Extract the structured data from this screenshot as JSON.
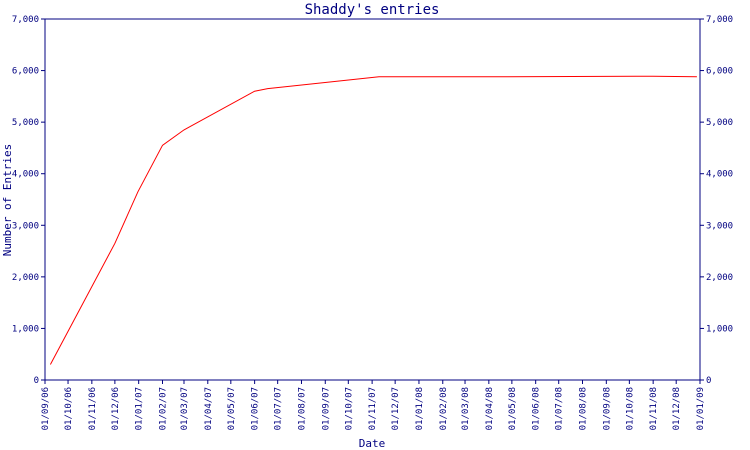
{
  "chart_data": {
    "type": "line",
    "title": "Shaddy's entries",
    "xlabel": "Date",
    "ylabel": "Number of Entries",
    "ylim": [
      0,
      7000
    ],
    "y_ticks": [
      0,
      1000,
      2000,
      3000,
      4000,
      5000,
      6000,
      7000
    ],
    "y_tick_labels": [
      "0",
      "1,000",
      "2,000",
      "3,000",
      "4,000",
      "5,000",
      "6,000",
      "7,000"
    ],
    "x_tick_labels": [
      "01/09/06",
      "01/10/06",
      "01/11/06",
      "01/12/06",
      "01/01/07",
      "01/02/07",
      "01/03/07",
      "01/04/07",
      "01/05/07",
      "01/06/07",
      "01/07/07",
      "01/08/07",
      "01/09/07",
      "01/10/07",
      "01/11/07",
      "01/12/07",
      "01/01/08",
      "01/02/08",
      "01/03/08",
      "01/04/08",
      "01/05/08",
      "01/06/08",
      "01/07/08",
      "01/08/08",
      "01/09/08",
      "01/10/08",
      "01/11/08",
      "01/12/08",
      "01/01/09"
    ],
    "grid": false,
    "line_color": "#ff0000",
    "axis_color": "#000080",
    "text_color": "#000080",
    "series": [
      {
        "x": [
          "2006-09-08",
          "2006-12-01",
          "2006-12-31",
          "2007-02-01",
          "2007-03-01",
          "2007-06-01",
          "2007-06-18",
          "2007-11-10",
          "2008-04-15",
          "2008-11-01",
          "2008-12-28"
        ],
        "values": [
          300,
          2650,
          3650,
          4550,
          4850,
          5600,
          5650,
          5880,
          5880,
          5890,
          5880
        ]
      }
    ]
  }
}
